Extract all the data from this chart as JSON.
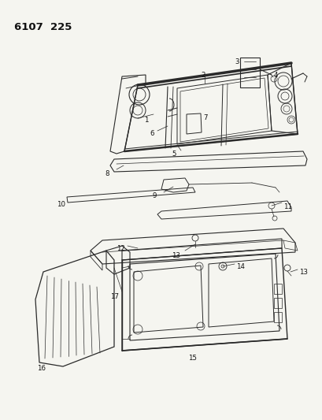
{
  "title": "6107 225",
  "bg_color": "#f5f5f0",
  "line_color": "#2a2a2a",
  "label_color": "#111111",
  "fig_width": 4.1,
  "fig_height": 5.33,
  "dpi": 100
}
